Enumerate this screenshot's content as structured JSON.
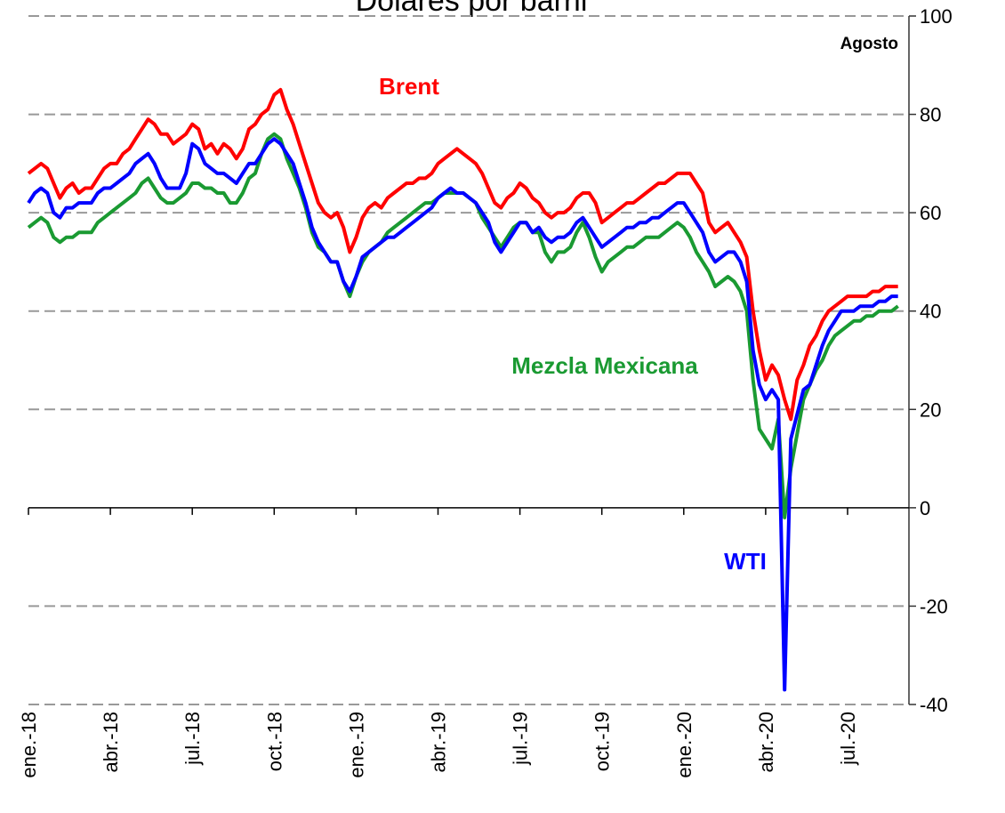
{
  "chart_data": {
    "type": "line",
    "title": "Dólares por barril",
    "annotations": [
      {
        "text": "Agosto",
        "color": "#000000"
      }
    ],
    "categories": [
      "ene.-18",
      null,
      null,
      null,
      null,
      null,
      null,
      null,
      null,
      null,
      null,
      null,
      null,
      "abr.-18",
      null,
      null,
      null,
      null,
      null,
      null,
      null,
      null,
      null,
      null,
      null,
      null,
      "jul.-18",
      null,
      null,
      null,
      null,
      null,
      null,
      null,
      null,
      null,
      null,
      null,
      null,
      "oct.-18",
      null,
      null,
      null,
      null,
      null,
      null,
      null,
      null,
      null,
      null,
      null,
      null,
      "ene.-19",
      null,
      null,
      null,
      null,
      null,
      null,
      null,
      null,
      null,
      null,
      null,
      null,
      "abr.-19",
      null,
      null,
      null,
      null,
      null,
      null,
      null,
      null,
      null,
      null,
      null,
      null,
      "jul.-19",
      null,
      null,
      null,
      null,
      null,
      null,
      null,
      null,
      null,
      null,
      null,
      null,
      "oct.-19",
      null,
      null,
      null,
      null,
      null,
      null,
      null,
      null,
      null,
      null,
      null,
      null,
      "ene.-20",
      null,
      null,
      null,
      null,
      null,
      null,
      null,
      null,
      null,
      null,
      null,
      null,
      "abr.-20",
      null,
      null,
      null,
      null,
      null,
      null,
      null,
      null,
      null,
      null,
      null,
      null,
      "jul.-20",
      null,
      null,
      null,
      null,
      null,
      null,
      null,
      null
    ],
    "series": [
      {
        "name": "Brent",
        "color": "#ff0000",
        "values": [
          68,
          69,
          70,
          69,
          66,
          63,
          65,
          66,
          64,
          65,
          65,
          67,
          69,
          70,
          70,
          72,
          73,
          75,
          77,
          79,
          78,
          76,
          76,
          74,
          75,
          76,
          78,
          77,
          73,
          74,
          72,
          74,
          73,
          71,
          73,
          77,
          78,
          80,
          81,
          84,
          85,
          81,
          78,
          74,
          70,
          66,
          62,
          60,
          59,
          60,
          57,
          52,
          55,
          59,
          61,
          62,
          61,
          63,
          64,
          65,
          66,
          66,
          67,
          67,
          68,
          70,
          71,
          72,
          73,
          72,
          71,
          70,
          68,
          65,
          62,
          61,
          63,
          64,
          66,
          65,
          63,
          62,
          60,
          59,
          60,
          60,
          61,
          63,
          64,
          64,
          62,
          58,
          59,
          60,
          61,
          62,
          62,
          63,
          64,
          65,
          66,
          66,
          67,
          68,
          68,
          68,
          66,
          64,
          58,
          56,
          57,
          58,
          56,
          54,
          51,
          40,
          32,
          26,
          29,
          27,
          22,
          18,
          26,
          29,
          33,
          35,
          38,
          40,
          41,
          42,
          43,
          43,
          43,
          43,
          44,
          44,
          45,
          45,
          45
        ]
      },
      {
        "name": "Mezcla Mexicana",
        "color": "#1a9a32",
        "values": [
          57,
          58,
          59,
          58,
          55,
          54,
          55,
          55,
          56,
          56,
          56,
          58,
          59,
          60,
          61,
          62,
          63,
          64,
          66,
          67,
          65,
          63,
          62,
          62,
          63,
          64,
          66,
          66,
          65,
          65,
          64,
          64,
          62,
          62,
          64,
          67,
          68,
          72,
          75,
          76,
          75,
          71,
          68,
          65,
          61,
          56,
          53,
          52,
          50,
          50,
          46,
          43,
          47,
          50,
          52,
          53,
          54,
          56,
          57,
          58,
          59,
          60,
          61,
          62,
          62,
          63,
          64,
          64,
          64,
          64,
          63,
          62,
          59,
          57,
          55,
          53,
          55,
          57,
          58,
          58,
          56,
          56,
          52,
          50,
          52,
          52,
          53,
          56,
          58,
          55,
          51,
          48,
          50,
          51,
          52,
          53,
          53,
          54,
          55,
          55,
          55,
          56,
          57,
          58,
          57,
          55,
          52,
          50,
          48,
          45,
          46,
          47,
          46,
          44,
          40,
          26,
          16,
          14,
          12,
          18,
          -2,
          8,
          15,
          22,
          25,
          28,
          30,
          33,
          35,
          36,
          37,
          38,
          38,
          39,
          39,
          40,
          40,
          40,
          41
        ]
      },
      {
        "name": "WTI",
        "color": "#0000ff",
        "values": [
          62,
          64,
          65,
          64,
          60,
          59,
          61,
          61,
          62,
          62,
          62,
          64,
          65,
          65,
          66,
          67,
          68,
          70,
          71,
          72,
          70,
          67,
          65,
          65,
          65,
          68,
          74,
          73,
          70,
          69,
          68,
          68,
          67,
          66,
          68,
          70,
          70,
          72,
          74,
          75,
          74,
          72,
          70,
          66,
          62,
          57,
          54,
          52,
          50,
          50,
          46,
          44,
          47,
          51,
          52,
          53,
          54,
          55,
          55,
          56,
          57,
          58,
          59,
          60,
          61,
          63,
          64,
          65,
          64,
          64,
          63,
          62,
          60,
          58,
          54,
          52,
          54,
          56,
          58,
          58,
          56,
          57,
          55,
          54,
          55,
          55,
          56,
          58,
          59,
          57,
          55,
          53,
          54,
          55,
          56,
          57,
          57,
          58,
          58,
          59,
          59,
          60,
          61,
          62,
          62,
          60,
          58,
          56,
          52,
          50,
          51,
          52,
          52,
          50,
          46,
          32,
          25,
          22,
          24,
          22,
          -37,
          14,
          19,
          24,
          25,
          29,
          33,
          36,
          38,
          40,
          40,
          40,
          41,
          41,
          41,
          42,
          42,
          43,
          43
        ]
      }
    ],
    "ylim": [
      -40,
      100
    ],
    "yticks": [
      -40,
      -20,
      0,
      20,
      40,
      60,
      80,
      100
    ],
    "grid": true
  }
}
